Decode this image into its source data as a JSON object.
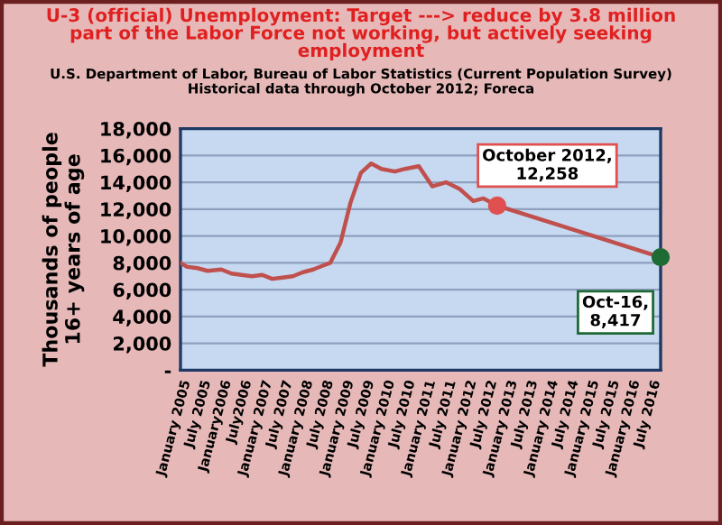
{
  "chart_data": {
    "type": "line",
    "title": "U-3 (official) Unemployment: Target ---> reduce by 3.8 million\npart of the Labor Force not working, but actively seeking\nemployment",
    "subtitle": "U.S. Department of Labor, Bureau of Labor Statistics (Current Population Survey)\nHistorical data through October 2012; Foreca",
    "ylabel": "Thousands of people\n16+ years of age",
    "series": [
      {
        "color": "#c0504d",
        "x": [
          "2005-01",
          "2005-03",
          "2005-06",
          "2005-09",
          "2006-01",
          "2006-04",
          "2006-07",
          "2006-10",
          "2007-01",
          "2007-04",
          "2007-07",
          "2007-10",
          "2008-01",
          "2008-04",
          "2008-07",
          "2008-09",
          "2008-12",
          "2009-03",
          "2009-06",
          "2009-09",
          "2009-12",
          "2010-04",
          "2010-07",
          "2010-11",
          "2011-03",
          "2011-07",
          "2011-11",
          "2012-03",
          "2012-06",
          "2012-10"
        ],
        "values": [
          8000,
          7700,
          7600,
          7400,
          7500,
          7200,
          7100,
          7000,
          7100,
          6800,
          6900,
          7000,
          7300,
          7500,
          7800,
          8000,
          9500,
          12500,
          14700,
          15400,
          15000,
          14800,
          15000,
          15200,
          13700,
          14000,
          13500,
          12600,
          12800,
          12258
        ]
      },
      {
        "color": "#c0504d",
        "x": [
          "2012-10",
          "2016-10"
        ],
        "values": [
          12258,
          8417
        ]
      },
      {
        "type": "scatter",
        "marker": "circle",
        "x": [
          "2012-10",
          "2016-10"
        ],
        "values": [
          12258,
          8417
        ],
        "colors": [
          "#e05050",
          "#1e6b35"
        ]
      }
    ],
    "annotations": [
      {
        "text": "October 2012,\n12,258",
        "x": "2012-10",
        "y": 12258
      },
      {
        "text": "Oct-16,\n8,417",
        "x": "2016-10",
        "y": 8417
      }
    ],
    "xlim": [
      "2005-01",
      "2016-10"
    ],
    "xticks": [
      {
        "value": "2005-01",
        "label": "January 2005"
      },
      {
        "value": "2005-07",
        "label": "July 2005"
      },
      {
        "value": "2006-01",
        "label": "January2006"
      },
      {
        "value": "2006-07",
        "label": "July2006"
      },
      {
        "value": "2007-01",
        "label": "January 2007"
      },
      {
        "value": "2007-07",
        "label": "July 2007"
      },
      {
        "value": "2008-01",
        "label": "January 2008"
      },
      {
        "value": "2008-07",
        "label": "July 2008"
      },
      {
        "value": "2009-01",
        "label": "January 2009"
      },
      {
        "value": "2009-07",
        "label": "July 2009"
      },
      {
        "value": "2010-01",
        "label": "January 2010"
      },
      {
        "value": "2010-07",
        "label": "July 2010"
      },
      {
        "value": "2011-01",
        "label": "January 2011"
      },
      {
        "value": "2011-07",
        "label": "July 2011"
      },
      {
        "value": "2012-01",
        "label": "January 2012"
      },
      {
        "value": "2012-07",
        "label": "July 2012"
      },
      {
        "value": "2013-01",
        "label": "January 2013"
      },
      {
        "value": "2013-07",
        "label": "July 2013"
      },
      {
        "value": "2014-01",
        "label": "January 2014"
      },
      {
        "value": "2014-07",
        "label": "July 2014"
      },
      {
        "value": "2015-01",
        "label": "January 2015"
      },
      {
        "value": "2015-07",
        "label": "July 2015"
      },
      {
        "value": "2016-01",
        "label": "January 2016"
      },
      {
        "value": "2016-07",
        "label": "July 2016"
      }
    ],
    "ylim": [
      0,
      18000
    ],
    "yticks": [
      {
        "value": 0,
        "label": "-"
      },
      {
        "value": 2000,
        "label": "2,000"
      },
      {
        "value": 4000,
        "label": "4,000"
      },
      {
        "value": 6000,
        "label": "6,000"
      },
      {
        "value": 8000,
        "label": "8,000"
      },
      {
        "value": 10000,
        "label": "10,000"
      },
      {
        "value": 12000,
        "label": "12,000"
      },
      {
        "value": 14000,
        "label": "14,000"
      },
      {
        "value": 16000,
        "label": "16,000"
      },
      {
        "value": 18000,
        "label": "18,000"
      }
    ],
    "grid": "y",
    "marker": "none",
    "line_style": "solid"
  }
}
